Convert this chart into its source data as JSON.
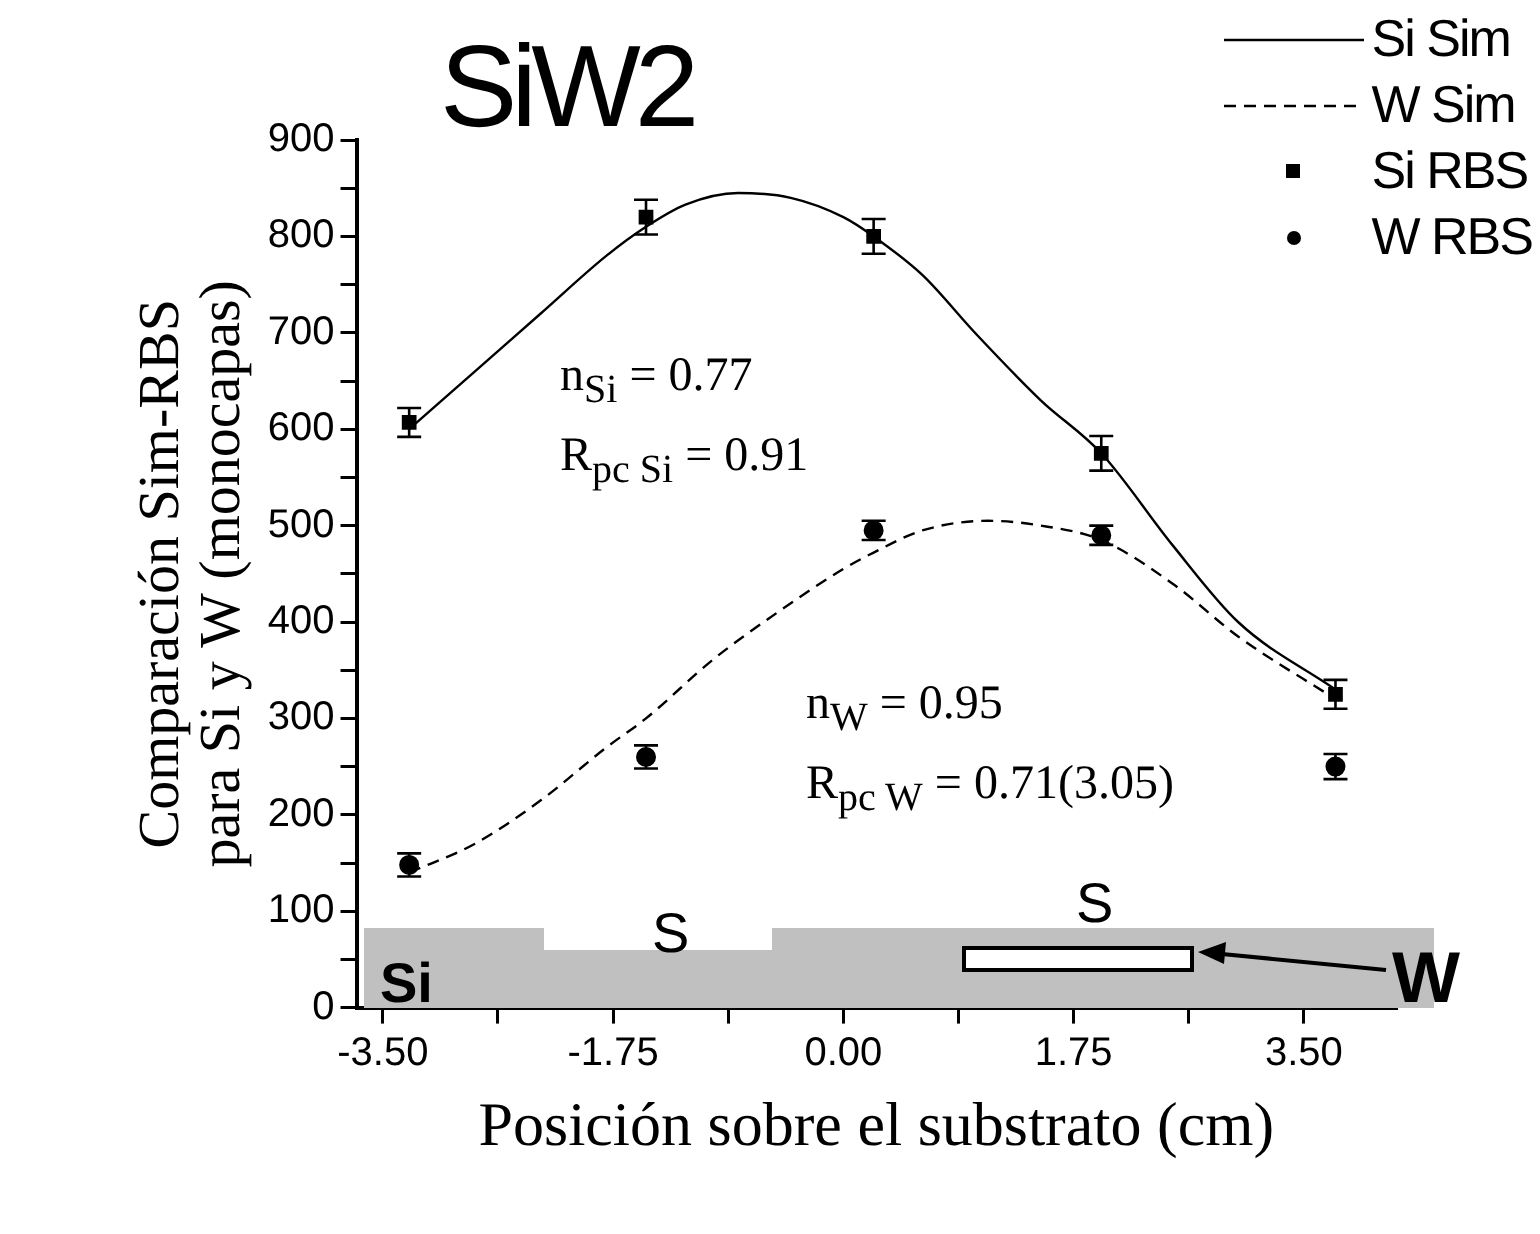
{
  "chart_data": {
    "type": "scatter",
    "title": "SiW2",
    "xlabel": "Posición sobre el substrato (cm)",
    "ylabel": "Comparación Sim-RBS\npara Si y W (monocapas)",
    "xlim": [
      -3.7,
      4.2
    ],
    "ylim": [
      0,
      900
    ],
    "xticks": [
      {
        "value": -3.5,
        "label": "-3.50"
      },
      {
        "value": -2.625,
        "label": null
      },
      {
        "value": -1.75,
        "label": "-1.75"
      },
      {
        "value": -0.875,
        "label": null
      },
      {
        "value": 0,
        "label": "0.00"
      },
      {
        "value": 0.875,
        "label": null
      },
      {
        "value": 1.75,
        "label": "1.75"
      },
      {
        "value": 2.625,
        "label": null
      },
      {
        "value": 3.5,
        "label": "3.50"
      }
    ],
    "yticks": [
      0,
      {
        "value": 50,
        "label": null
      },
      100,
      {
        "value": 150,
        "label": null
      },
      200,
      {
        "value": 250,
        "label": null
      },
      300,
      {
        "value": 350,
        "label": null
      },
      400,
      {
        "value": 450,
        "label": null
      },
      500,
      {
        "value": 550,
        "label": null
      },
      600,
      {
        "value": 650,
        "label": null
      },
      700,
      {
        "value": 750,
        "label": null
      },
      800,
      {
        "value": 850,
        "label": null
      },
      900
    ],
    "legend": "top right",
    "grid": false,
    "series": [
      {
        "name": "Si Sim",
        "type": "line",
        "color": "#000000",
        "marker": "none",
        "line_style": "solid",
        "x": [
          -3.3,
          -2.8,
          -2.3,
          -1.8,
          -1.5,
          -1.2,
          -0.8,
          -0.4,
          0,
          0.23,
          0.6,
          1.0,
          1.5,
          1.96,
          2.5,
          3.0,
          3.74
        ],
        "values": [
          600,
          660,
          720,
          780,
          810,
          833,
          845,
          840,
          820,
          800,
          760,
          700,
          630,
          575,
          480,
          400,
          330
        ]
      },
      {
        "name": "W Sim",
        "type": "line",
        "color": "#000000",
        "marker": "none",
        "line_style": "dashed",
        "x": [
          -3.3,
          -2.8,
          -2.3,
          -1.8,
          -1.5,
          -1.0,
          -0.5,
          0,
          0.23,
          0.6,
          1.1,
          1.5,
          1.96,
          2.5,
          3.0,
          3.74
        ],
        "values": [
          140,
          170,
          215,
          270,
          300,
          360,
          410,
          455,
          472,
          495,
          505,
          500,
          485,
          440,
          385,
          320
        ]
      },
      {
        "name": "Si RBS",
        "type": "scatter",
        "color": "#000000",
        "marker": "square",
        "x": [
          -3.3,
          -1.5,
          0.23,
          1.96,
          3.74
        ],
        "values": [
          607,
          820,
          800,
          575,
          325
        ],
        "errors": [
          15,
          18,
          18,
          18,
          15
        ]
      },
      {
        "name": "W RBS",
        "type": "scatter",
        "color": "#000000",
        "marker": "circle",
        "x": [
          -3.3,
          -1.5,
          0.23,
          1.96,
          3.74
        ],
        "values": [
          148,
          260,
          495,
          490,
          250
        ],
        "errors": [
          12,
          12,
          10,
          10,
          13
        ]
      }
    ],
    "annotations": [
      "n$_{Si}$ = 0.77",
      "R$_{pc Si}$ = 0.91",
      "n$_{W}$ = 0.95",
      "R$_{pc W}$ = 0.71(3.05)",
      "Si",
      "S",
      "S",
      "W"
    ]
  }
}
